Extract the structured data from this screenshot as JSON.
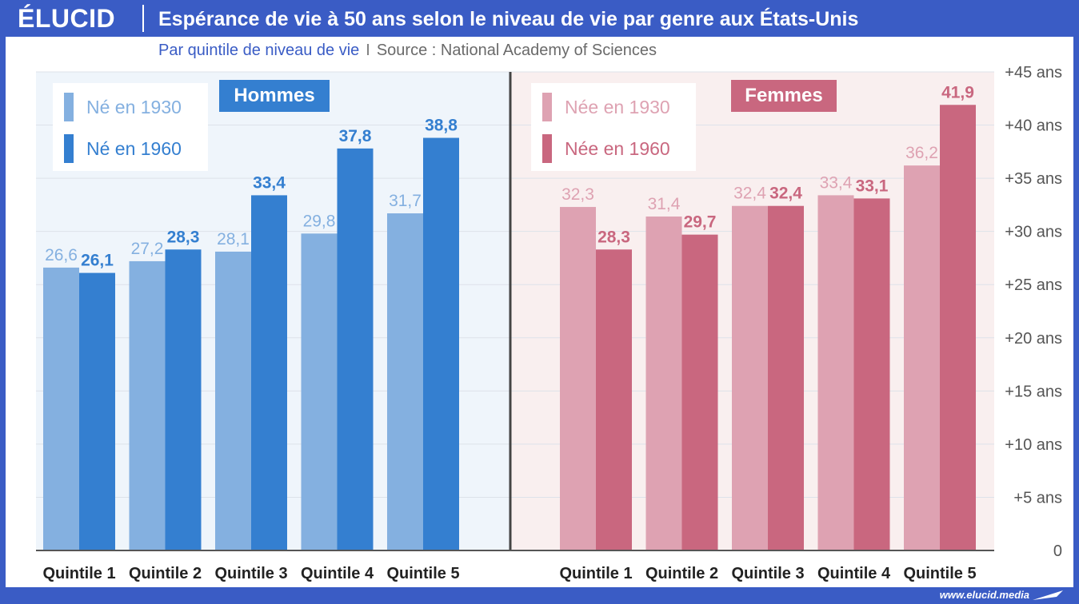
{
  "header": {
    "logo": "ÉLUCID",
    "title": "Espérance de vie à 50 ans selon le niveau de vie par genre aux États-Unis"
  },
  "subtitle": {
    "main": "Par quintile de niveau de vie",
    "separator": "I",
    "source": "Source : National Academy of Sciences"
  },
  "footer": {
    "url": "www.elucid.media"
  },
  "colors": {
    "brand": "#3a5cc5",
    "men_1930": "#84b0e0",
    "men_1960": "#347fd0",
    "women_1930": "#dea2b2",
    "women_1960": "#c9677f",
    "men_bg": "#eff5fb",
    "women_bg": "#f9efef"
  },
  "chart_data": [
    {
      "type": "bar",
      "title": "Hommes",
      "categories": [
        "Quintile 1",
        "Quintile 2",
        "Quintile 3",
        "Quintile 4",
        "Quintile 5"
      ],
      "series": [
        {
          "name": "Né en 1930",
          "values": [
            26.6,
            27.2,
            28.1,
            29.8,
            31.7
          ],
          "labels": [
            "26,6",
            "27,2",
            "28,1",
            "29,8",
            "31,7"
          ]
        },
        {
          "name": "Né en 1960",
          "values": [
            26.1,
            28.3,
            33.4,
            37.8,
            38.8
          ],
          "labels": [
            "26,1",
            "28,3",
            "33,4",
            "37,8",
            "38,8"
          ]
        }
      ],
      "ylim": [
        0,
        45
      ],
      "legend": "top-left"
    },
    {
      "type": "bar",
      "title": "Femmes",
      "categories": [
        "Quintile 1",
        "Quintile 2",
        "Quintile 3",
        "Quintile 4",
        "Quintile 5"
      ],
      "series": [
        {
          "name": "Née en 1930",
          "values": [
            32.3,
            31.4,
            32.4,
            33.4,
            36.2
          ],
          "labels": [
            "32,3",
            "31,4",
            "32,4",
            "33,4",
            "36,2"
          ]
        },
        {
          "name": "Née en 1960",
          "values": [
            28.3,
            29.7,
            32.4,
            33.1,
            41.9
          ],
          "labels": [
            "28,3",
            "29,7",
            "32,4",
            "33,1",
            "41,9"
          ]
        }
      ],
      "ylim": [
        0,
        45
      ],
      "legend": "top-left"
    }
  ],
  "y_axis": {
    "ticks": [
      0,
      5,
      10,
      15,
      20,
      25,
      30,
      35,
      40,
      45
    ],
    "tick_labels": [
      "0",
      "+5 ans",
      "+10 ans",
      "+15 ans",
      "+20 ans",
      "+25 ans",
      "+30 ans",
      "+35 ans",
      "+40 ans",
      "+45 ans"
    ],
    "position": "right",
    "grid": true
  }
}
